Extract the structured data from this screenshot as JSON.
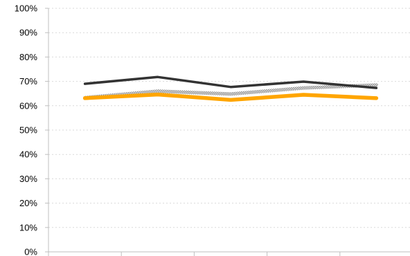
{
  "chart_data": {
    "type": "line",
    "title": "",
    "xlabel": "",
    "ylabel": "",
    "categories": [
      "",
      "",
      "",
      "",
      ""
    ],
    "ylim": [
      0,
      100
    ],
    "yticks": [
      "0%",
      "10%",
      "20%",
      "30%",
      "40%",
      "50%",
      "60%",
      "70%",
      "80%",
      "90%",
      "100%"
    ],
    "grid": true,
    "legend": "none",
    "series": [
      {
        "values": [
          63.3,
          66.0,
          64.8,
          67.3,
          68.5
        ],
        "color": "#a6a6a6",
        "style": "hatched-gray"
      },
      {
        "values": [
          69.0,
          71.8,
          67.7,
          69.9,
          67.3
        ],
        "color": "#333333",
        "style": "solid"
      },
      {
        "values": [
          63.1,
          64.6,
          62.4,
          64.5,
          63.1
        ],
        "color": "#ffa500",
        "style": "solid-thick"
      }
    ]
  }
}
